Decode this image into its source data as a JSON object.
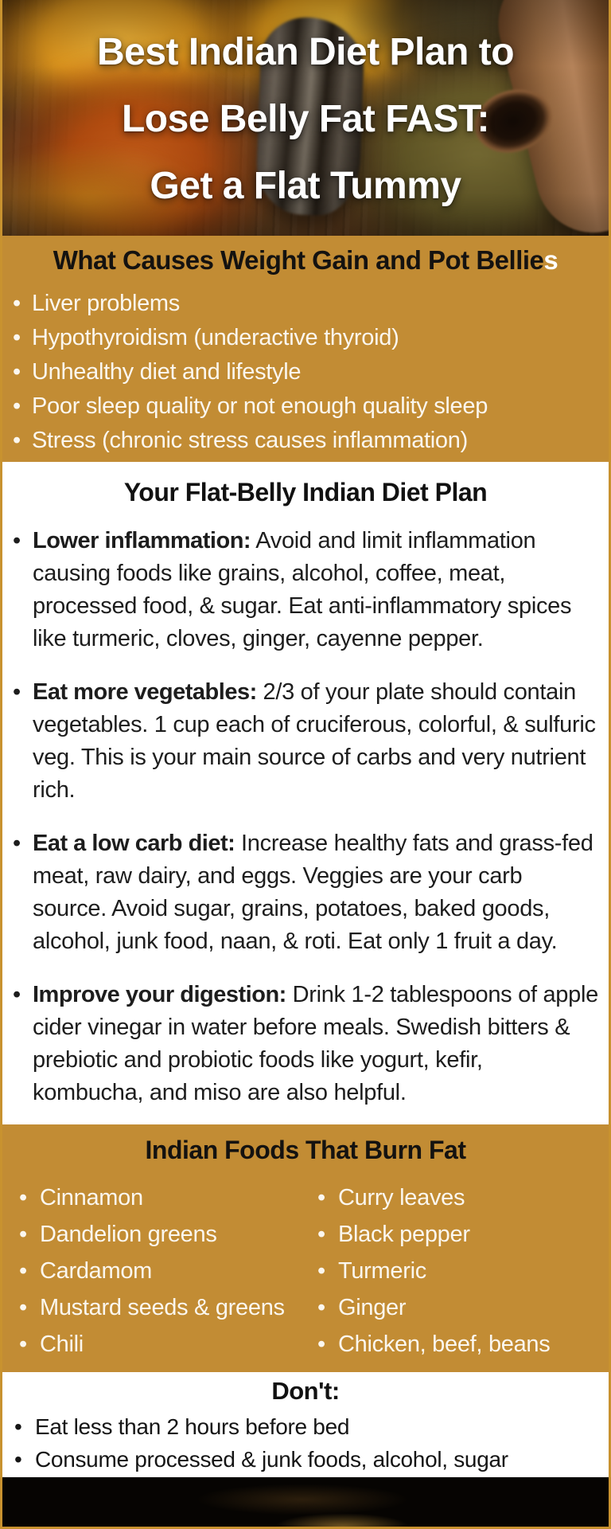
{
  "colors": {
    "gold_background": "#c28c34",
    "frame_border": "#c8922f",
    "heading_text": "#141210",
    "list_text_light": "#fbf7ef"
  },
  "header": {
    "title_lines": [
      "Best Indian Diet Plan to",
      "Lose Belly Fat FAST:",
      "Get a Flat Tummy"
    ]
  },
  "causes": {
    "heading_main": "What Causes Weight Gain and Pot Bellie",
    "heading_suffix": "s",
    "items": [
      "Liver problems",
      "Hypothyroidism (underactive thyroid)",
      "Unhealthy diet and lifestyle",
      "Poor sleep quality or not enough quality sleep",
      "Stress (chronic stress causes inflammation)"
    ]
  },
  "plan": {
    "heading": "Your Flat-Belly Indian Diet Plan",
    "items": [
      {
        "lead": "Lower inflammation:",
        "text": " Avoid and limit inflammation causing foods like grains, alcohol, coffee, meat, processed food, & sugar. Eat anti-inflammatory spices like turmeric, cloves, ginger, cayenne pepper."
      },
      {
        "lead": "Eat more vegetables:",
        "text": " 2/3 of your plate should contain vegetables. 1 cup each of cruciferous, colorful, & sulfuric veg. This is your main source of carbs and very nutrient rich."
      },
      {
        "lead": "Eat a low carb diet:",
        "text": " Increase healthy fats and grass-fed meat, raw dairy, and eggs. Veggies are your carb source. Avoid sugar, grains, potatoes, baked goods, alcohol, junk food, naan, & roti. Eat only 1 fruit a day."
      },
      {
        "lead": "Improve your digestion:",
        "text": " Drink 1-2 tablespoons of apple cider vinegar in water before meals. Swedish bitters & prebiotic and probiotic foods like yogurt, kefir, kombucha, and miso are also helpful."
      }
    ]
  },
  "burn": {
    "heading": "Indian Foods That Burn Fat",
    "left": [
      "Cinnamon",
      "Dandelion greens",
      "Cardamom",
      "Mustard seeds & greens",
      "Chili"
    ],
    "right": [
      "Curry leaves",
      "Black pepper",
      "Turmeric",
      "Ginger",
      "Chicken, beef, beans"
    ]
  },
  "dont": {
    "heading": "Don't:",
    "items": [
      "Eat less than 2 hours before bed",
      "Consume processed & junk foods, alcohol, sugar"
    ]
  }
}
